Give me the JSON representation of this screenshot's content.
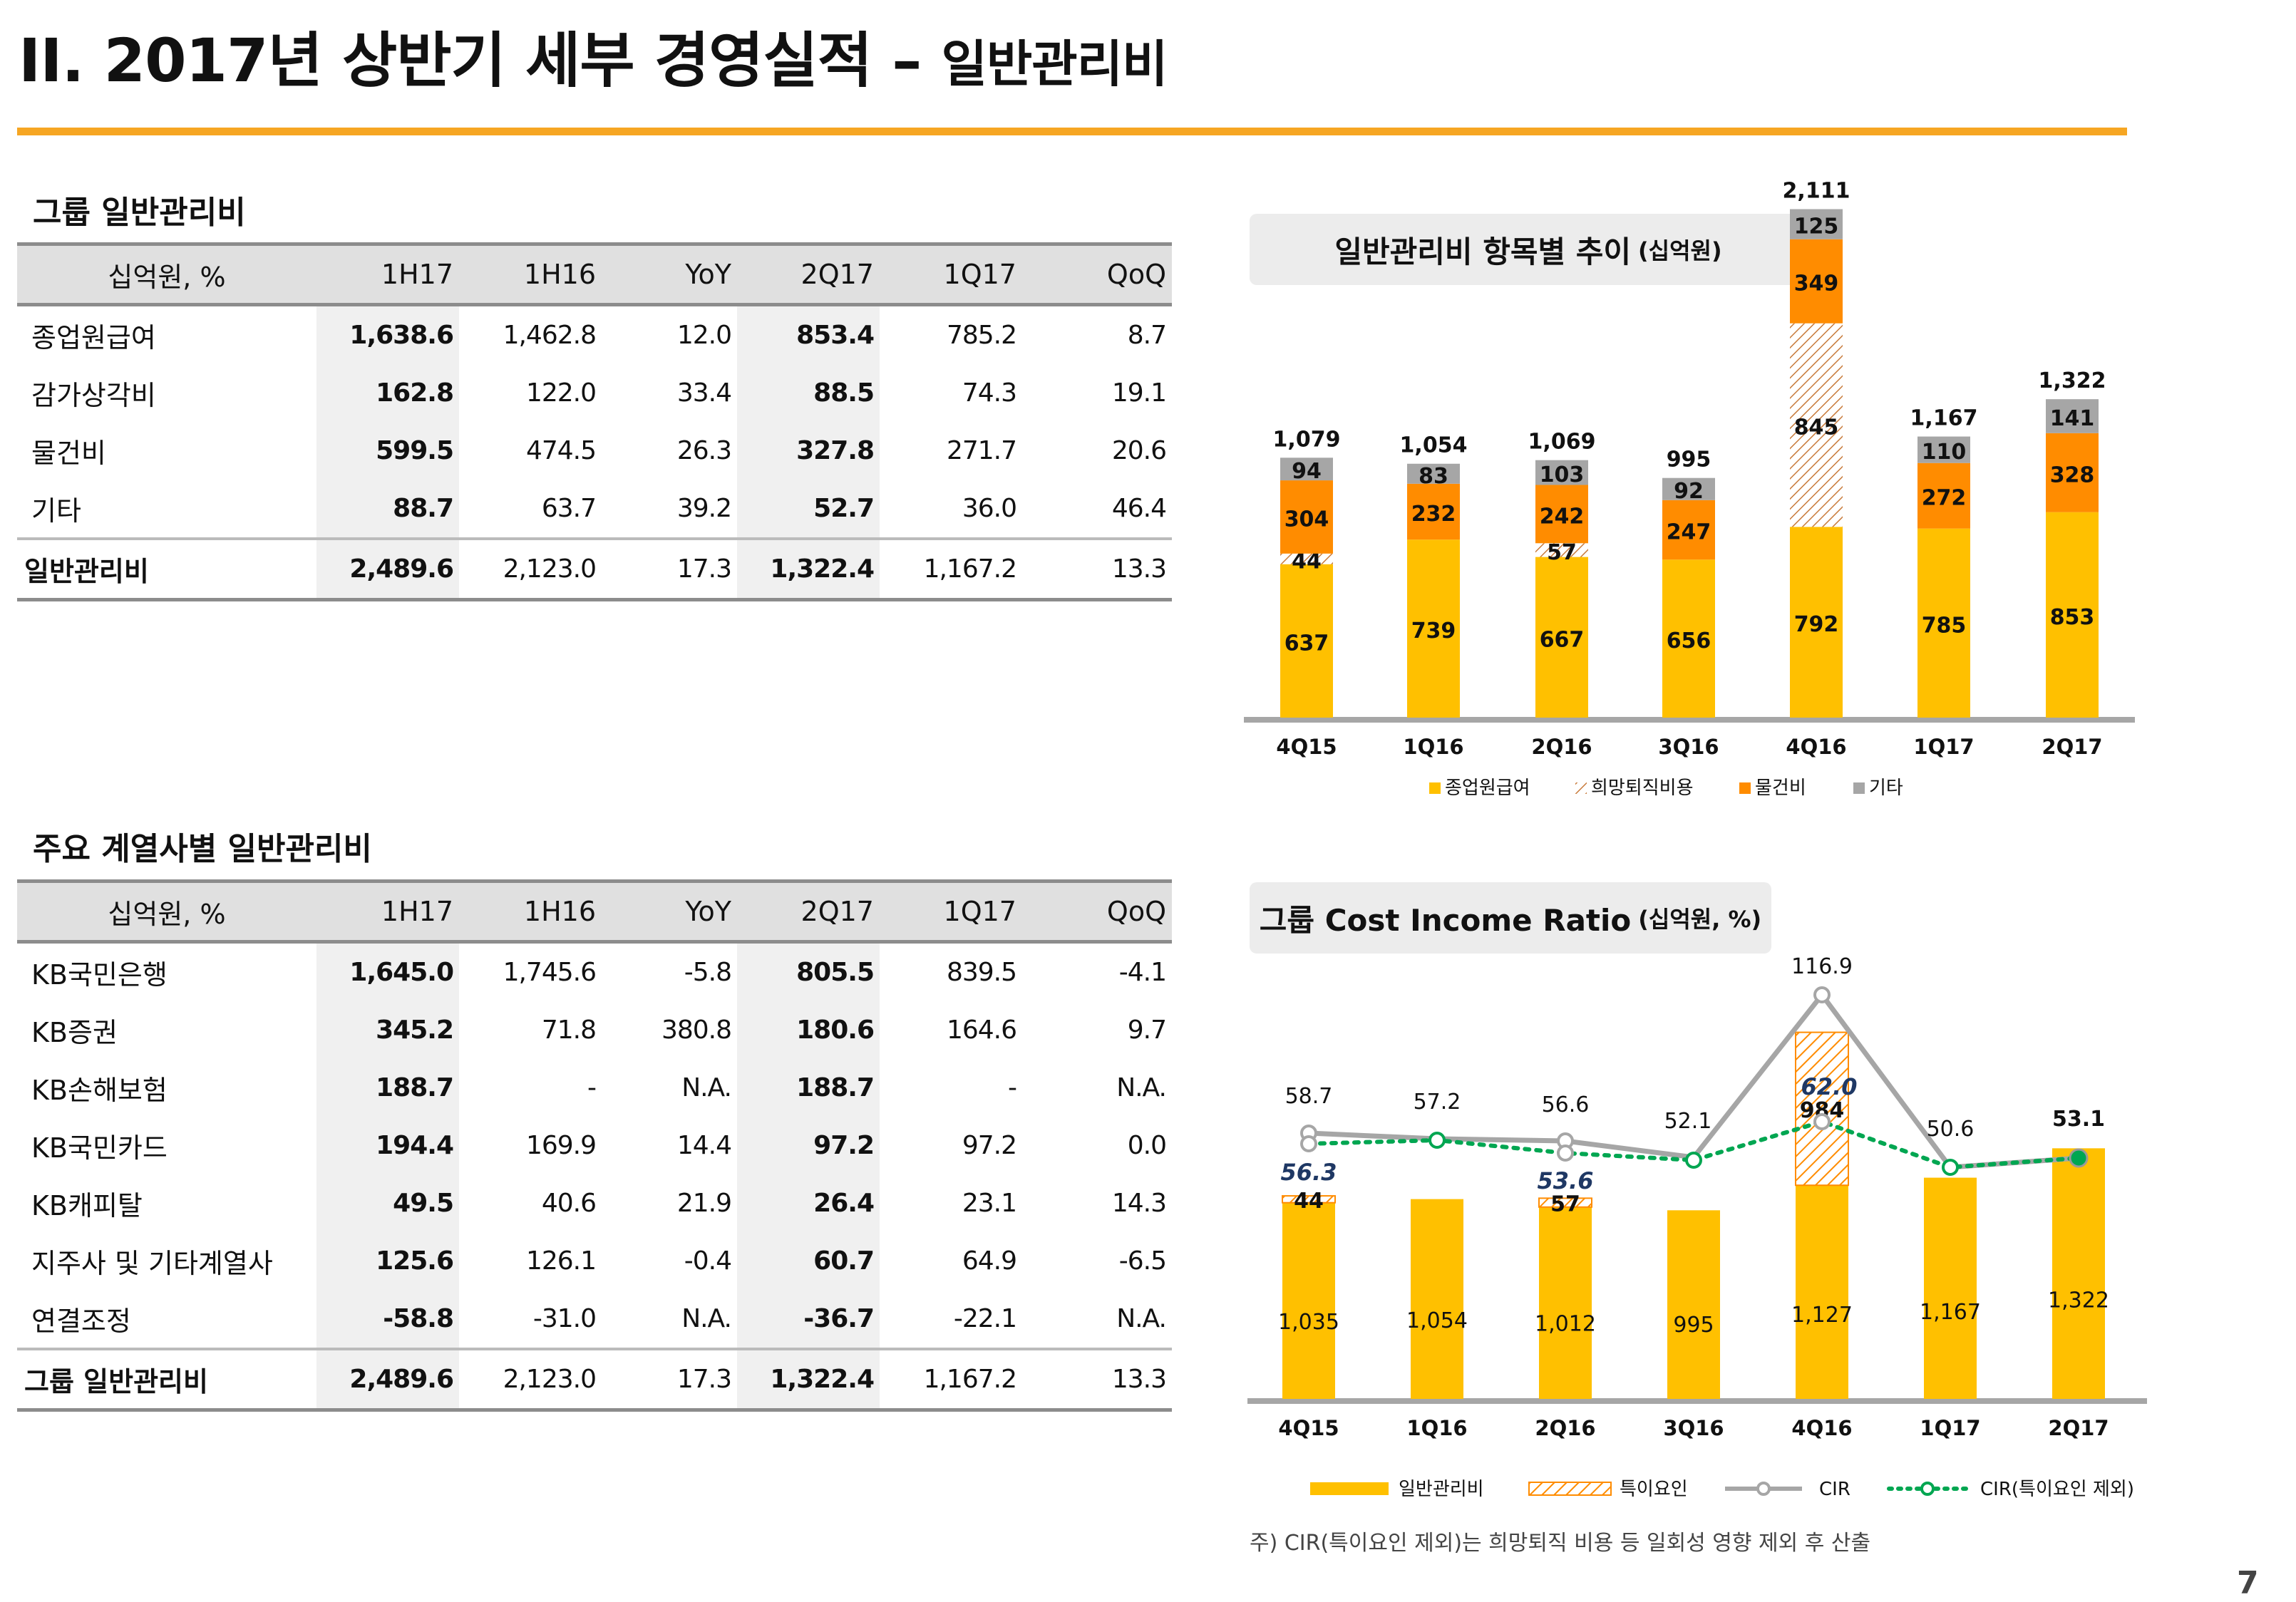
{
  "title": {
    "main": "II. 2017년 상반기 세부 경영실적",
    "dash": "–",
    "sub": "일반관리비"
  },
  "table1": {
    "section_title": "그룹 일반관리비",
    "headers": [
      "십억원, %",
      "1H17",
      "1H16",
      "YoY",
      "2Q17",
      "1Q17",
      "QoQ"
    ],
    "rows": [
      [
        "종업원급여",
        "1,638.6",
        "1,462.8",
        "12.0",
        "853.4",
        "785.2",
        "8.7"
      ],
      [
        "감가상각비",
        "162.8",
        "122.0",
        "33.4",
        "88.5",
        "74.3",
        "19.1"
      ],
      [
        "물건비",
        "599.5",
        "474.5",
        "26.3",
        "327.8",
        "271.7",
        "20.6"
      ],
      [
        "기타",
        "88.7",
        "63.7",
        "39.2",
        "52.7",
        "36.0",
        "46.4"
      ],
      [
        "일반관리비",
        "2,489.6",
        "2,123.0",
        "17.3",
        "1,322.4",
        "1,167.2",
        "13.3"
      ]
    ]
  },
  "table2": {
    "section_title": "주요 계열사별 일반관리비",
    "headers": [
      "십억원, %",
      "1H17",
      "1H16",
      "YoY",
      "2Q17",
      "1Q17",
      "QoQ"
    ],
    "rows": [
      [
        "KB국민은행",
        "1,645.0",
        "1,745.6",
        "-5.8",
        "805.5",
        "839.5",
        "-4.1"
      ],
      [
        "KB증권",
        "345.2",
        "71.8",
        "380.8",
        "180.6",
        "164.6",
        "9.7"
      ],
      [
        "KB손해보험",
        "188.7",
        "-",
        "N.A.",
        "188.7",
        "-",
        "N.A."
      ],
      [
        "KB국민카드",
        "194.4",
        "169.9",
        "14.4",
        "97.2",
        "97.2",
        "0.0"
      ],
      [
        "KB캐피탈",
        "49.5",
        "40.6",
        "21.9",
        "26.4",
        "23.1",
        "14.3"
      ],
      [
        "지주사 및 기타계열사",
        "125.6",
        "126.1",
        "-0.4",
        "60.7",
        "64.9",
        "-6.5"
      ],
      [
        "연결조정",
        "-58.8",
        "-31.0",
        "N.A.",
        "-36.7",
        "-22.1",
        "N.A."
      ],
      [
        "그룹 일반관리비",
        "2,489.6",
        "2,123.0",
        "17.3",
        "1,322.4",
        "1,167.2",
        "13.3"
      ]
    ]
  },
  "chart_data": [
    {
      "type": "bar",
      "stacked": true,
      "title": "일반관리비 항목별 추이",
      "unit": "(십억원)",
      "categories": [
        "4Q15",
        "1Q16",
        "2Q16",
        "3Q16",
        "4Q16",
        "1Q17",
        "2Q17"
      ],
      "series": [
        {
          "name": "종업원급여",
          "color": "#ffc000",
          "values": [
            637,
            739,
            667,
            656,
            792,
            785,
            853
          ]
        },
        {
          "name": "희망퇴직비용",
          "color": "#ff8c00",
          "pattern": "hatch",
          "values": [
            44,
            null,
            57,
            null,
            845,
            null,
            null
          ]
        },
        {
          "name": "물건비",
          "color": "#ff8c00",
          "values": [
            304,
            232,
            242,
            247,
            349,
            272,
            328
          ]
        },
        {
          "name": "기타",
          "color": "#a6a6a6",
          "values": [
            94,
            83,
            103,
            92,
            125,
            110,
            141
          ]
        }
      ],
      "totals": [
        1079,
        1054,
        1069,
        995,
        2111,
        1167,
        1322
      ],
      "total_labels": [
        "1,079",
        "1,054",
        "1,069",
        "995",
        "2,111",
        "1,167",
        "1,322"
      ],
      "legend_position": "bottom"
    },
    {
      "type": "bar+line",
      "title": "그룹 Cost Income Ratio",
      "unit": "(십억원, %)",
      "categories": [
        "4Q15",
        "1Q16",
        "2Q16",
        "3Q16",
        "4Q16",
        "1Q17",
        "2Q17"
      ],
      "bars": {
        "name": "일반관리비",
        "color": "#ffc000",
        "values": [
          1035,
          1054,
          1012,
          995,
          1127,
          1167,
          1322
        ],
        "labels": [
          "1,035",
          "1,054",
          "1,012",
          "995",
          "1,127",
          "1,167",
          "1,322"
        ]
      },
      "special": {
        "name": "특이요인",
        "color": "#ff8c00",
        "pattern": "hatch",
        "values": [
          44,
          null,
          57,
          null,
          984,
          null,
          null
        ]
      },
      "cir": {
        "name": "CIR",
        "color": "#a6a6a6",
        "values": [
          58.7,
          57.2,
          56.6,
          52.1,
          116.9,
          50.6,
          53.1
        ]
      },
      "cir_ex": {
        "name": "CIR(특이요인 제외)",
        "color": "#00a651",
        "values": [
          56.3,
          57.2,
          53.6,
          52.1,
          62.0,
          50.6,
          53.1
        ],
        "shown_labels": [
          "56.3",
          "53.6",
          "62.0"
        ]
      },
      "legend_position": "bottom"
    }
  ],
  "note": "주) CIR(특이요인 제외)는 희망퇴직 비용 등 일회성 영향 제외 후 산출",
  "page_number": "7"
}
